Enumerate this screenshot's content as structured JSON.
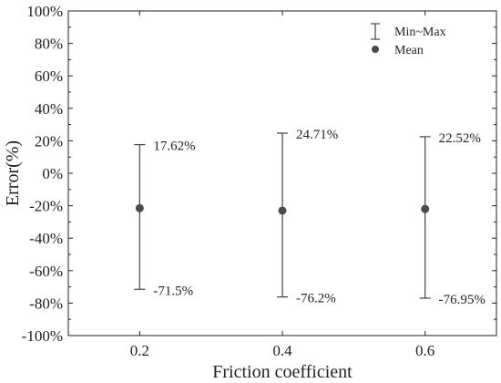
{
  "chart_data": {
    "type": "scatter",
    "xlabel": "Friction coefficient",
    "ylabel": "Error(%)",
    "x": [
      0.2,
      0.4,
      0.6
    ],
    "x_ticks": [
      "0.2",
      "0.4",
      "0.6"
    ],
    "xlim": [
      0.1,
      0.7
    ],
    "ylim": [
      -100,
      100
    ],
    "y_ticks": [
      -100,
      -80,
      -60,
      -40,
      -20,
      0,
      20,
      40,
      60,
      80,
      100
    ],
    "y_tick_labels": [
      "-100%",
      "-80%",
      "-60%",
      "-40%",
      "-20%",
      "0%",
      "20%",
      "40%",
      "60%",
      "80%",
      "100%"
    ],
    "series": [
      {
        "name": "Min~Max",
        "min": [
          -71.5,
          -76.2,
          -76.95
        ],
        "max": [
          17.62,
          24.71,
          22.52
        ]
      },
      {
        "name": "Mean",
        "values": [
          -21.5,
          -23.0,
          -22.0
        ]
      }
    ],
    "max_labels": [
      "17.62%",
      "24.71%",
      "22.52%"
    ],
    "min_labels": [
      "-71.5%",
      "-76.2%",
      "-76.95%"
    ],
    "legend_position": "top-right",
    "grid": false,
    "colors": {
      "errbar": "#444444",
      "mean": "#4a4a4a"
    }
  }
}
